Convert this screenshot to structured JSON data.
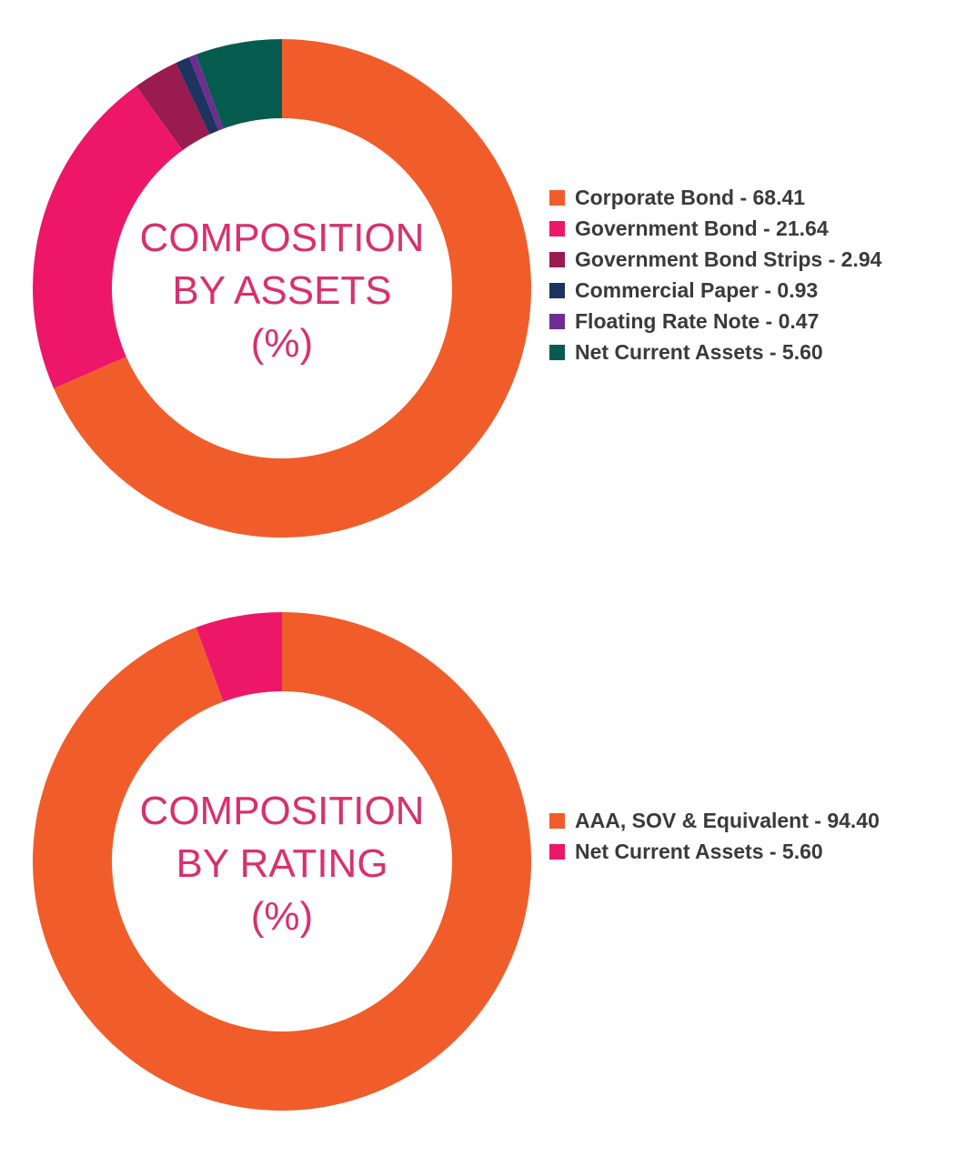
{
  "chart_data": [
    {
      "type": "pie",
      "variant": "donut",
      "title_lines": [
        "COMPOSITION",
        "BY ASSETS",
        "(%)"
      ],
      "legend_position": "right",
      "categories": [
        "Corporate Bond",
        "Government Bond",
        "Government Bond Strips",
        "Commercial Paper",
        "Floating Rate Note",
        "Net Current Assets"
      ],
      "values": [
        68.41,
        21.64,
        2.94,
        0.93,
        0.47,
        5.6
      ],
      "labels": [
        "Corporate Bond - 68.41",
        "Government Bond - 21.64",
        "Government Bond Strips - 2.94",
        "Commercial Paper - 0.93",
        "Floating Rate Note - 0.47",
        "Net Current Assets - 5.60"
      ],
      "colors": [
        "#f15d2a",
        "#ec1769",
        "#9a1b4f",
        "#1d3461",
        "#6f2d91",
        "#055c4e"
      ]
    },
    {
      "type": "pie",
      "variant": "donut",
      "title_lines": [
        "COMPOSITION",
        "BY RATING",
        "(%)"
      ],
      "legend_position": "right",
      "categories": [
        "AAA, SOV & Equivalent",
        "Net Current Assets"
      ],
      "values": [
        94.4,
        5.6
      ],
      "labels": [
        "AAA, SOV & Equivalent - 94.40",
        "Net Current Assets - 5.60"
      ],
      "colors": [
        "#f15d2a",
        "#ec1769"
      ]
    }
  ]
}
